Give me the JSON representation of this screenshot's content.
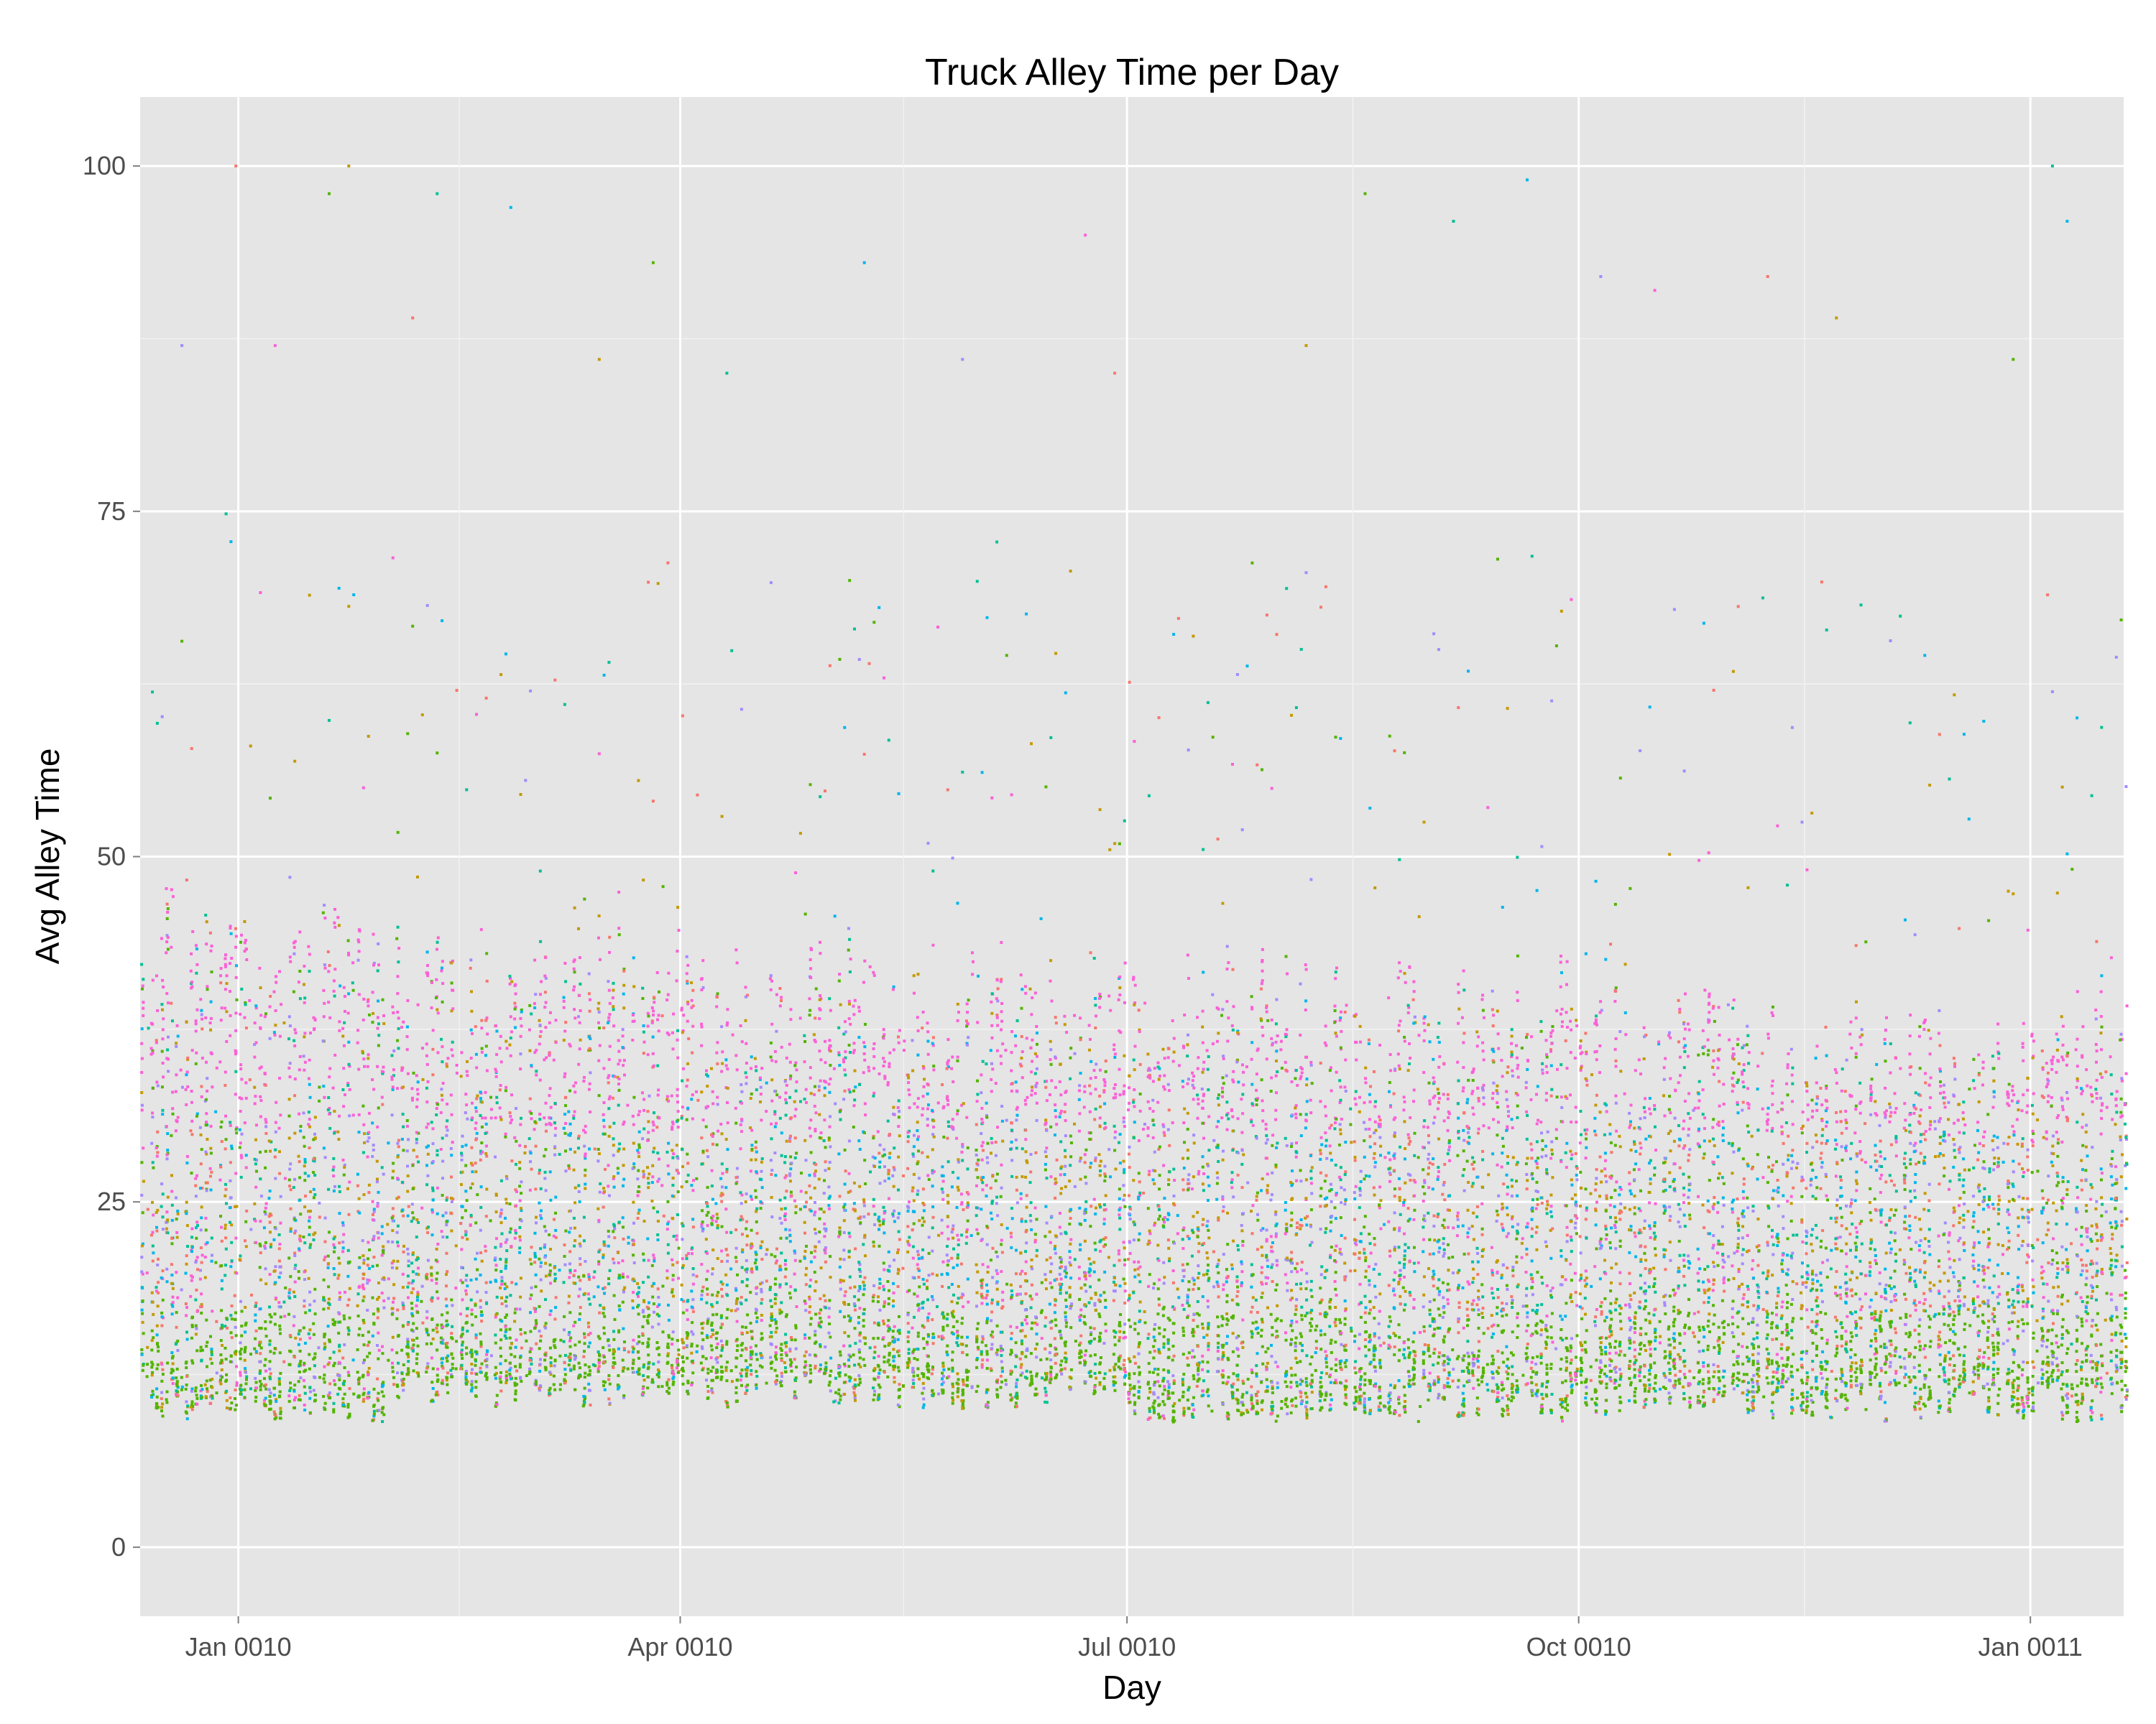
{
  "chart_data": {
    "type": "scatter",
    "title": "Truck Alley Time per Day",
    "xlabel": "Day",
    "ylabel": "Avg Alley Time",
    "y_ticks": [
      0,
      25,
      50,
      75,
      100
    ],
    "x_ticks": [
      {
        "date": "0010-01-01",
        "label": "Jan 0010"
      },
      {
        "date": "0010-04-01",
        "label": "Apr 0010"
      },
      {
        "date": "0010-07-01",
        "label": "Jul 0010"
      },
      {
        "date": "0010-10-01",
        "label": "Oct 0010"
      },
      {
        "date": "0011-01-01",
        "label": "Jan 0011"
      }
    ],
    "xlim": [
      "0009-12-12",
      "0011-01-20"
    ],
    "ylim": [
      -5,
      105
    ],
    "grid": true,
    "legend": "none",
    "point_colors": [
      "#F8766D",
      "#C49A00",
      "#53B400",
      "#00C094",
      "#00B6EB",
      "#A58AFF",
      "#FB61D7"
    ],
    "series_summary": [
      {
        "date_from": "0009-12-12",
        "date_to": "0010-01-31",
        "y_low": 9,
        "y_high": 48
      },
      {
        "date_from": "0010-02-01",
        "date_to": "0010-03-31",
        "y_low": 10,
        "y_high": 46
      },
      {
        "date_from": "0010-04-01",
        "date_to": "0010-06-30",
        "y_low": 10,
        "y_high": 45
      },
      {
        "date_from": "0010-07-01",
        "date_to": "0010-09-30",
        "y_low": 9,
        "y_high": 44
      },
      {
        "date_from": "0010-10-01",
        "date_to": "0011-01-20",
        "y_low": 9,
        "y_high": 42
      }
    ],
    "outliers": [
      {
        "x": "0009-12-31",
        "y": 100
      },
      {
        "x": "0010-01-23",
        "y": 100
      },
      {
        "x": "0010-01-19",
        "y": 98
      },
      {
        "x": "0010-02-10",
        "y": 98
      },
      {
        "x": "0010-02-25",
        "y": 97
      },
      {
        "x": "0009-12-20",
        "y": 87
      },
      {
        "x": "0010-01-08",
        "y": 87
      },
      {
        "x": "0010-02-05",
        "y": 89
      },
      {
        "x": "0010-03-15",
        "y": 86
      },
      {
        "x": "0010-03-26",
        "y": 93
      },
      {
        "x": "0010-04-10",
        "y": 85
      },
      {
        "x": "0010-05-08",
        "y": 93
      },
      {
        "x": "0010-05-28",
        "y": 86
      },
      {
        "x": "0010-06-22",
        "y": 95
      },
      {
        "x": "0010-06-28",
        "y": 85
      },
      {
        "x": "0010-08-06",
        "y": 87
      },
      {
        "x": "0010-08-18",
        "y": 98
      },
      {
        "x": "0010-09-05",
        "y": 96
      },
      {
        "x": "0010-09-20",
        "y": 99
      },
      {
        "x": "0010-10-05",
        "y": 92
      },
      {
        "x": "0010-10-16",
        "y": 91
      },
      {
        "x": "0010-11-08",
        "y": 92
      },
      {
        "x": "0010-11-22",
        "y": 89
      },
      {
        "x": "0010-12-28",
        "y": 86
      },
      {
        "x": "0011-01-05",
        "y": 100
      },
      {
        "x": "0011-01-08",
        "y": 96
      }
    ]
  }
}
